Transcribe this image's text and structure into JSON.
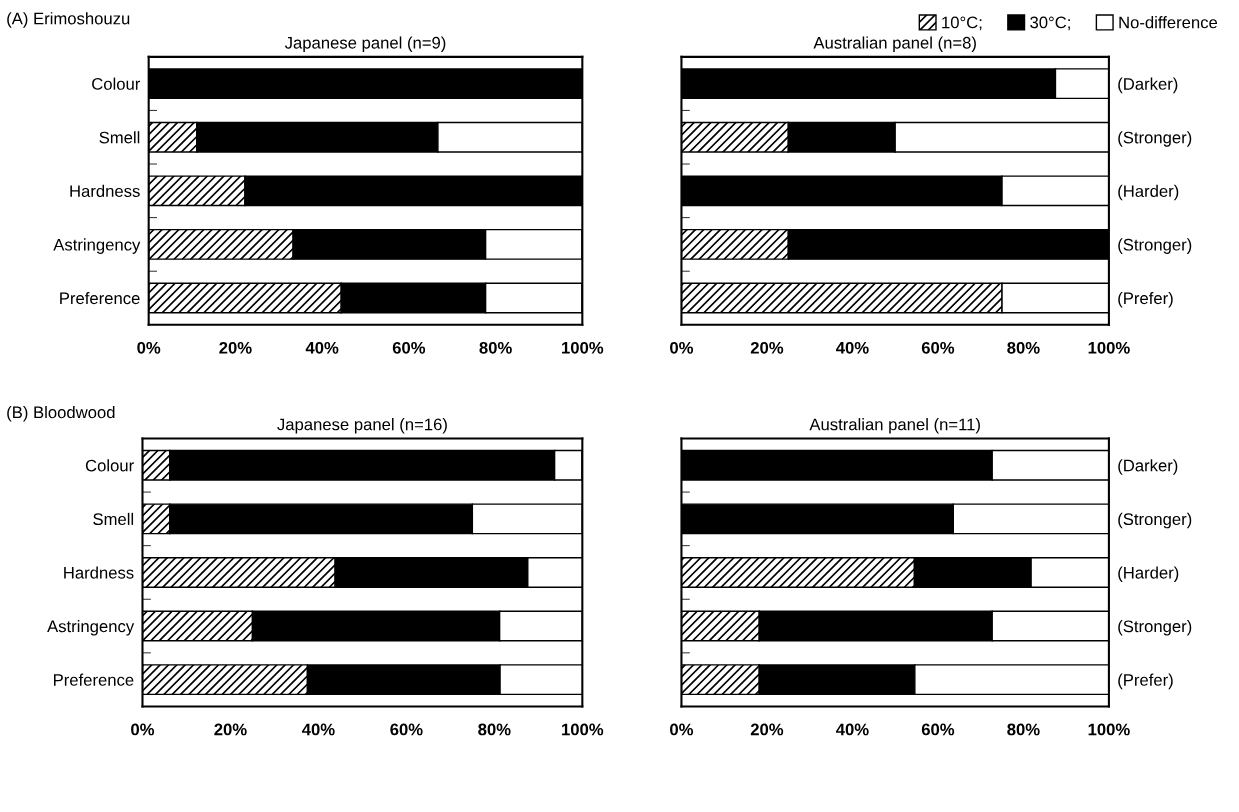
{
  "chart_data": [
    {
      "type": "bar",
      "orientation": "horizontal",
      "stacked": true,
      "title": "Japanese panel (n=9)",
      "annotations": [
        "(A) Erimoshouzu"
      ],
      "categories": [
        "Colour",
        "Smell",
        "Hardness",
        "Astringency",
        "Preference"
      ],
      "xlim": [
        0,
        100
      ],
      "xticks": [
        {
          "value": 0,
          "label": "0%"
        },
        {
          "value": 20,
          "label": "20%"
        },
        {
          "value": 40,
          "label": "40%"
        },
        {
          "value": 60,
          "label": "60%"
        },
        {
          "value": 80,
          "label": "80%"
        },
        {
          "value": 100,
          "label": "100%"
        }
      ],
      "grid": false,
      "legend": "top right",
      "series": [
        {
          "name": "10°C;",
          "color": "#000000",
          "values": [
            0,
            11.1,
            22.2,
            33.3,
            44.4
          ]
        },
        {
          "name": "30°C;",
          "color": "#000000",
          "values": [
            100,
            55.6,
            77.8,
            44.4,
            33.3
          ]
        },
        {
          "name": "No-difference",
          "color": "#ffffff",
          "values": [
            0,
            33.3,
            0,
            22.2,
            22.2
          ]
        }
      ]
    },
    {
      "type": "bar",
      "orientation": "horizontal",
      "stacked": true,
      "title": "Australian panel (n=8)",
      "categories": [
        "(Darker)",
        "(Stronger)",
        "(Harder)",
        "(Stronger)",
        "(Prefer)"
      ],
      "xlim": [
        0,
        100
      ],
      "xticks": [
        {
          "value": 0,
          "label": "0%"
        },
        {
          "value": 20,
          "label": "20%"
        },
        {
          "value": 40,
          "label": "40%"
        },
        {
          "value": 60,
          "label": "60%"
        },
        {
          "value": 80,
          "label": "80%"
        },
        {
          "value": 100,
          "label": "100%"
        }
      ],
      "grid": false,
      "legend": false,
      "series": [
        {
          "color": "#000000",
          "values": [
            0,
            25,
            0,
            25,
            75
          ]
        },
        {
          "color": "#000000",
          "values": [
            87.5,
            25,
            75,
            75,
            0
          ]
        },
        {
          "color": "#ffffff",
          "values": [
            12.5,
            50,
            25,
            0,
            25
          ]
        }
      ]
    },
    {
      "type": "bar",
      "orientation": "horizontal",
      "stacked": true,
      "title": "Japanese panel (n=16)",
      "annotations": [
        "(B) Bloodwood"
      ],
      "categories": [
        "Colour",
        "Smell",
        "Hardness",
        "Astringency",
        "Preference"
      ],
      "xlim": [
        0,
        100
      ],
      "xticks": [
        {
          "value": 0,
          "label": "0%"
        },
        {
          "value": 20,
          "label": "20%"
        },
        {
          "value": 40,
          "label": "40%"
        },
        {
          "value": 60,
          "label": "60%"
        },
        {
          "value": 80,
          "label": "80%"
        },
        {
          "value": 100,
          "label": "100%"
        }
      ],
      "grid": false,
      "legend": false,
      "series": [
        {
          "color": "#000000",
          "values": [
            6.2,
            6.2,
            43.8,
            25,
            37.5
          ]
        },
        {
          "color": "#000000",
          "values": [
            87.5,
            68.8,
            43.8,
            56.2,
            43.8
          ]
        },
        {
          "color": "#ffffff",
          "values": [
            6.2,
            25,
            12.5,
            18.8,
            18.8
          ]
        }
      ]
    },
    {
      "type": "bar",
      "orientation": "horizontal",
      "stacked": true,
      "title": "Australian panel (n=11)",
      "categories": [
        "(Darker)",
        "(Stronger)",
        "(Harder)",
        "(Stronger)",
        "(Prefer)"
      ],
      "xlim": [
        0,
        100
      ],
      "xticks": [
        {
          "value": 0,
          "label": "0%"
        },
        {
          "value": 20,
          "label": "20%"
        },
        {
          "value": 40,
          "label": "40%"
        },
        {
          "value": 60,
          "label": "60%"
        },
        {
          "value": 80,
          "label": "80%"
        },
        {
          "value": 100,
          "label": "100%"
        }
      ],
      "grid": false,
      "legend": false,
      "series": [
        {
          "color": "#000000",
          "values": [
            0,
            0,
            54.5,
            18.2,
            18.2
          ]
        },
        {
          "color": "#000000",
          "values": [
            72.7,
            63.6,
            27.3,
            54.5,
            36.4
          ]
        },
        {
          "color": "#ffffff",
          "values": [
            27.3,
            36.4,
            18.2,
            27.3,
            45.5
          ]
        }
      ]
    }
  ]
}
